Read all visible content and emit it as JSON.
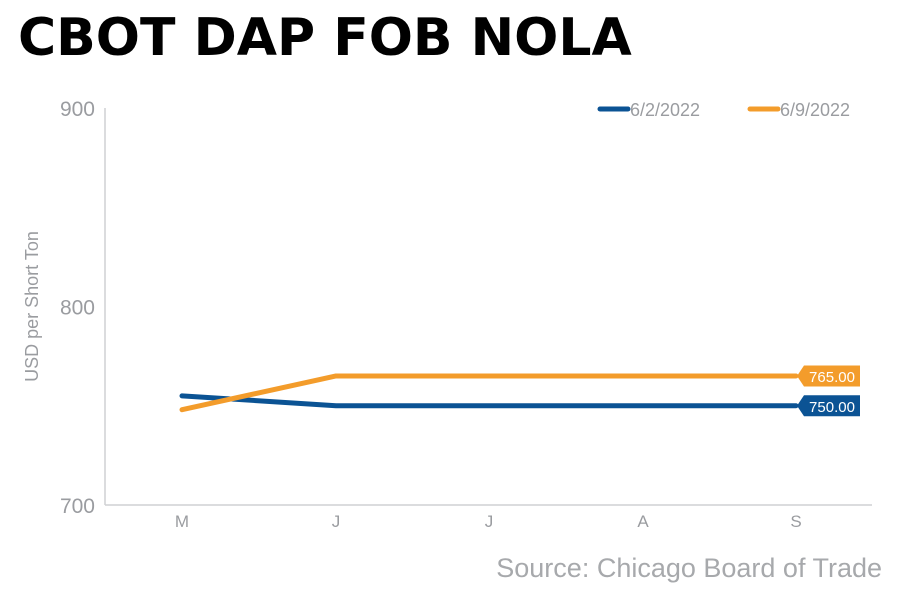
{
  "title": "CBOT DAP FOB NOLA",
  "source": "Source: Chicago Board of Trade",
  "chart_data": {
    "type": "line",
    "title": "CBOT DAP FOB NOLA",
    "ylabel": "USD per Short Ton",
    "xlabel": "",
    "categories": [
      "M",
      "J",
      "J",
      "A",
      "S"
    ],
    "ylim": [
      700,
      900
    ],
    "yticks": [
      700,
      800,
      900
    ],
    "grid": false,
    "legend_position": "top-right",
    "series": [
      {
        "name": "6/2/2022",
        "color": "#0b5394",
        "values": [
          755,
          750,
          750,
          750,
          750
        ],
        "end_label": "750.00"
      },
      {
        "name": "6/9/2022",
        "color": "#f39c2b",
        "values": [
          748,
          765,
          765,
          765,
          765
        ],
        "end_label": "765.00"
      }
    ]
  }
}
